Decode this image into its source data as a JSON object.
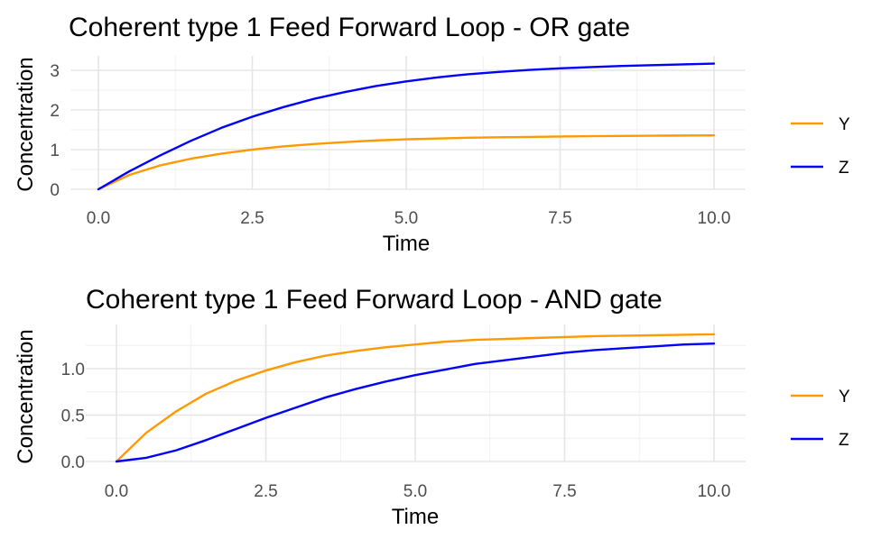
{
  "chart_data": [
    {
      "type": "line",
      "title": "Coherent type 1 Feed Forward Loop - OR gate",
      "xlabel": "Time",
      "ylabel": "Concentration",
      "xlim": [
        0,
        10
      ],
      "ylim": [
        0,
        3.25
      ],
      "x_ticks": [
        "0.0",
        "2.5",
        "5.0",
        "7.5",
        "10.0"
      ],
      "y_ticks": [
        "0",
        "1",
        "2",
        "3"
      ],
      "grid": true,
      "legend_position": "right",
      "x": [
        0,
        0.5,
        1,
        1.5,
        2,
        2.5,
        3,
        3.5,
        4,
        4.5,
        5,
        5.5,
        6,
        6.5,
        7,
        7.5,
        8,
        8.5,
        9,
        9.5,
        10
      ],
      "series": [
        {
          "name": "Y",
          "color": "#FF9900",
          "values": [
            0,
            0.36,
            0.6,
            0.77,
            0.9,
            1.0,
            1.08,
            1.14,
            1.19,
            1.23,
            1.26,
            1.28,
            1.3,
            1.31,
            1.32,
            1.33,
            1.34,
            1.345,
            1.35,
            1.355,
            1.36
          ]
        },
        {
          "name": "Z",
          "color": "#0000FF",
          "values": [
            0,
            0.45,
            0.85,
            1.22,
            1.55,
            1.83,
            2.07,
            2.28,
            2.45,
            2.6,
            2.72,
            2.82,
            2.9,
            2.96,
            3.01,
            3.05,
            3.08,
            3.11,
            3.13,
            3.15,
            3.17
          ]
        }
      ]
    },
    {
      "type": "line",
      "title": "Coherent type 1 Feed Forward Loop - AND gate",
      "xlabel": "Time",
      "ylabel": "Concentration",
      "xlim": [
        0,
        10
      ],
      "ylim": [
        0,
        1.38
      ],
      "x_ticks": [
        "0.0",
        "2.5",
        "5.0",
        "7.5",
        "10.0"
      ],
      "y_ticks": [
        "0.0",
        "0.5",
        "1.0"
      ],
      "grid": true,
      "legend_position": "right",
      "x": [
        0,
        0.5,
        1,
        1.5,
        2,
        2.5,
        3,
        3.5,
        4,
        4.5,
        5,
        5.5,
        6,
        6.5,
        7,
        7.5,
        8,
        8.5,
        9,
        9.5,
        10
      ],
      "series": [
        {
          "name": "Y",
          "color": "#FF9900",
          "values": [
            0,
            0.31,
            0.54,
            0.73,
            0.87,
            0.98,
            1.07,
            1.14,
            1.19,
            1.23,
            1.26,
            1.29,
            1.31,
            1.32,
            1.33,
            1.34,
            1.35,
            1.355,
            1.36,
            1.365,
            1.37
          ]
        },
        {
          "name": "Z",
          "color": "#0000FF",
          "values": [
            0,
            0.04,
            0.12,
            0.23,
            0.35,
            0.47,
            0.58,
            0.69,
            0.78,
            0.86,
            0.93,
            0.99,
            1.05,
            1.09,
            1.13,
            1.17,
            1.2,
            1.22,
            1.24,
            1.26,
            1.27
          ]
        }
      ]
    }
  ]
}
